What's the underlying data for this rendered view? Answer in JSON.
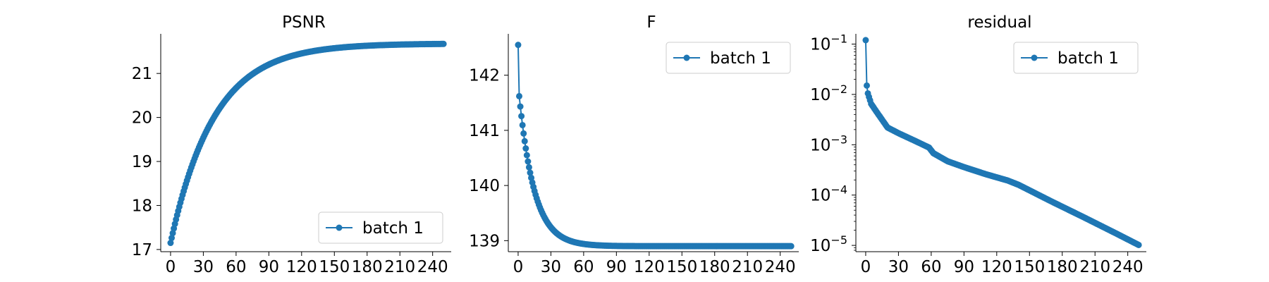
{
  "colors": {
    "series": "#1f77b4",
    "axis": "#000000",
    "legend_border": "#cccccc"
  },
  "chart_data": [
    {
      "type": "line",
      "title": "PSNR",
      "xlabel": "",
      "ylabel": "",
      "xlim": [
        -9,
        257
      ],
      "ylim": [
        16.95,
        21.9
      ],
      "xticks": [
        0,
        30,
        60,
        90,
        120,
        150,
        180,
        210,
        240
      ],
      "yticks": [
        17,
        18,
        19,
        20,
        21
      ],
      "legend_position": "lower right",
      "markers": true,
      "grid": false,
      "series": [
        {
          "name": "batch 1",
          "model": "exp_rise",
          "n": 251,
          "start": 17.15,
          "end": 21.68,
          "tau": 40
        }
      ]
    },
    {
      "type": "line",
      "title": "F",
      "xlabel": "",
      "ylabel": "",
      "xlim": [
        -9,
        257
      ],
      "ylim": [
        138.8,
        142.75
      ],
      "xticks": [
        0,
        30,
        60,
        90,
        120,
        150,
        180,
        210,
        240
      ],
      "yticks": [
        139,
        140,
        141,
        142
      ],
      "legend_position": "upper right",
      "markers": true,
      "grid": false,
      "series": [
        {
          "name": "batch 1",
          "model": "fast_decay",
          "n": 251,
          "first": 142.55,
          "end": 138.9,
          "tau": 14
        }
      ]
    },
    {
      "type": "line",
      "title": "residual",
      "xlabel": "",
      "ylabel": "",
      "yscale": "log",
      "xlim": [
        -9,
        257
      ],
      "ylim": [
        7.5e-06,
        0.16
      ],
      "xticks": [
        0,
        30,
        60,
        90,
        120,
        150,
        180,
        210,
        240
      ],
      "yticks": [
        1e-05,
        0.0001,
        0.001,
        0.01,
        0.1
      ],
      "ytick_exponents": [
        "-5",
        "-4",
        "-3",
        "-2",
        "-1"
      ],
      "legend_position": "upper right",
      "markers": true,
      "grid": false,
      "series": [
        {
          "name": "batch 1",
          "model": "log_interp",
          "n": 251,
          "anchors_x": [
            0,
            1,
            2,
            5,
            10,
            20,
            30,
            45,
            58,
            62,
            75,
            90,
            110,
            130,
            140,
            170,
            200,
            230,
            250
          ],
          "anchors_y": [
            0.12,
            0.015,
            0.0105,
            0.0065,
            0.0045,
            0.0022,
            0.0017,
            0.0012,
            0.00088,
            0.00068,
            0.00047,
            0.00036,
            0.00026,
            0.000195,
            0.00016,
            7.5e-05,
            3.6e-05,
            1.7e-05,
            1.02e-05
          ]
        }
      ]
    }
  ]
}
